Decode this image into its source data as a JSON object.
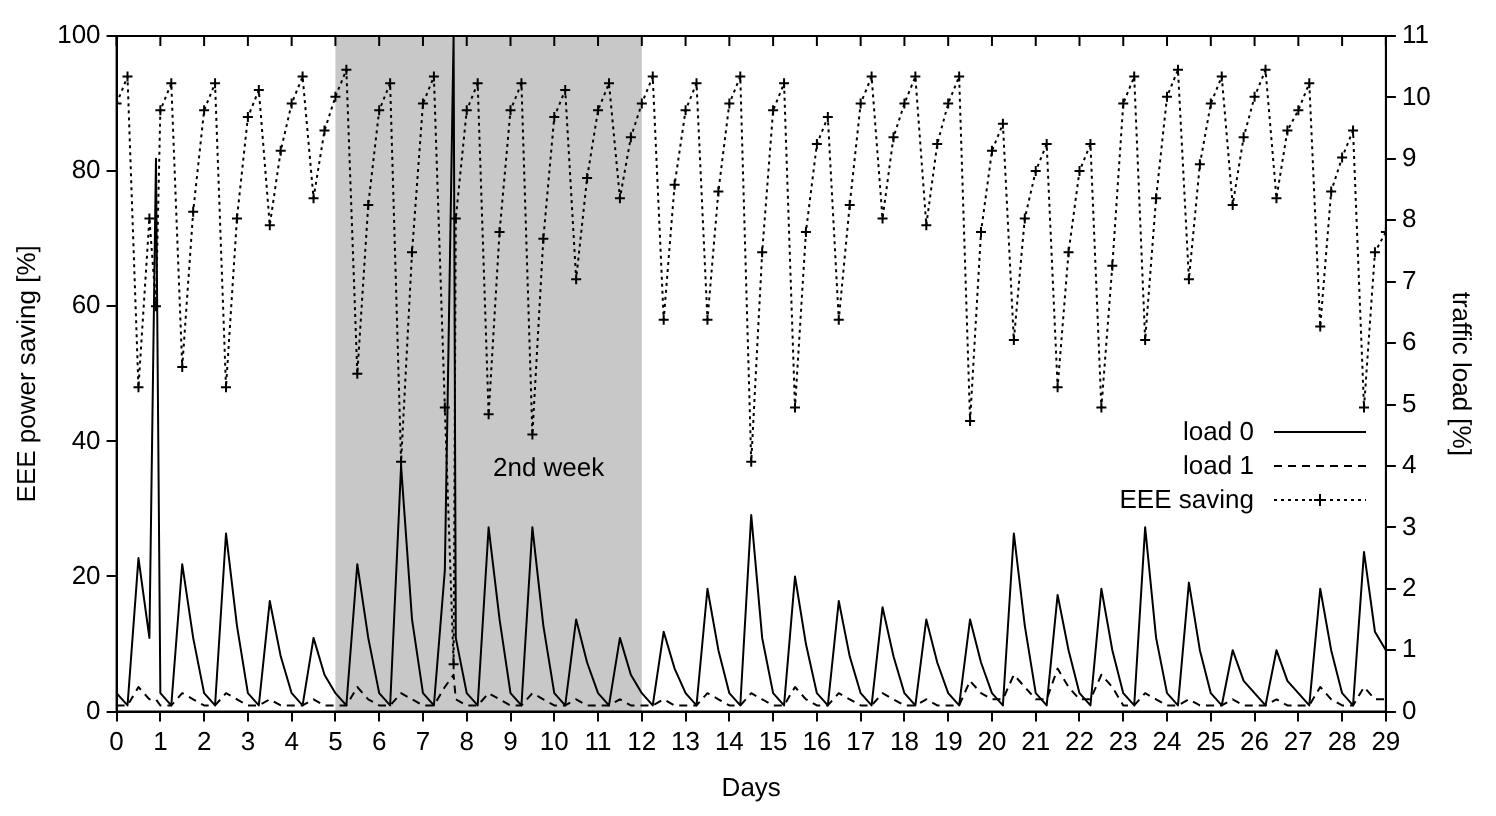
{
  "chart_data": {
    "type": "line",
    "xlabel": "Days",
    "ylabel": "EEE power saving [%]",
    "y2label": "traffic load [%]",
    "x": [
      0,
      0.25,
      0.5,
      0.75,
      0.9,
      1,
      1.25,
      1.5,
      1.75,
      2,
      2.25,
      2.5,
      2.75,
      3,
      3.25,
      3.5,
      3.75,
      4,
      4.25,
      4.5,
      4.75,
      5,
      5.25,
      5.5,
      5.75,
      6,
      6.25,
      6.5,
      6.75,
      7,
      7.25,
      7.5,
      7.7,
      7.75,
      8,
      8.25,
      8.5,
      8.75,
      9,
      9.25,
      9.5,
      9.75,
      10,
      10.25,
      10.5,
      10.75,
      11,
      11.25,
      11.5,
      11.75,
      12,
      12.25,
      12.5,
      12.75,
      13,
      13.25,
      13.5,
      13.75,
      14,
      14.25,
      14.5,
      14.75,
      15,
      15.25,
      15.5,
      15.75,
      16,
      16.25,
      16.5,
      16.75,
      17,
      17.25,
      17.5,
      17.75,
      18,
      18.25,
      18.5,
      18.75,
      19,
      19.25,
      19.5,
      19.75,
      20,
      20.25,
      20.5,
      20.75,
      21,
      21.25,
      21.5,
      21.75,
      22,
      22.25,
      22.5,
      22.75,
      23,
      23.25,
      23.5,
      23.75,
      24,
      24.25,
      24.5,
      24.75,
      25,
      25.25,
      25.5,
      25.75,
      26,
      26.25,
      26.5,
      26.75,
      27,
      27.25,
      27.5,
      27.75,
      28,
      28.25,
      28.5,
      28.75,
      29
    ],
    "series": [
      {
        "name": "load 0",
        "color": "#000000",
        "axis": "y2",
        "line_style": "solid",
        "marker": "none",
        "values": [
          0.3,
          0.1,
          2.5,
          1.2,
          9,
          0.3,
          0.1,
          2.4,
          1.2,
          0.3,
          0.1,
          2.9,
          1.4,
          0.3,
          0.1,
          1.8,
          0.9,
          0.3,
          0.1,
          1.2,
          0.6,
          0.3,
          0.1,
          2.4,
          1.2,
          0.3,
          0.1,
          4.0,
          1.5,
          0.3,
          0.1,
          2.3,
          11,
          1.2,
          0.3,
          0.1,
          3.0,
          1.5,
          0.3,
          0.1,
          3.0,
          1.4,
          0.3,
          0.1,
          1.5,
          0.8,
          0.3,
          0.1,
          1.2,
          0.6,
          0.3,
          0.1,
          1.3,
          0.7,
          0.3,
          0.1,
          2.0,
          1.0,
          0.3,
          0.1,
          3.2,
          1.2,
          0.3,
          0.1,
          2.2,
          1.1,
          0.3,
          0.1,
          1.8,
          0.9,
          0.3,
          0.1,
          1.7,
          0.9,
          0.3,
          0.1,
          1.5,
          0.8,
          0.3,
          0.1,
          1.5,
          0.8,
          0.3,
          0.1,
          2.9,
          1.4,
          0.3,
          0.1,
          1.9,
          1.0,
          0.3,
          0.1,
          2.0,
          1.0,
          0.3,
          0.1,
          3.0,
          1.2,
          0.3,
          0.1,
          2.1,
          1.0,
          0.3,
          0.1,
          1.0,
          0.5,
          0.3,
          0.1,
          1.0,
          0.5,
          0.3,
          0.1,
          2.0,
          1.0,
          0.3,
          0.1,
          2.6,
          1.3,
          1.0
        ]
      },
      {
        "name": "load 1",
        "color": "#000000",
        "axis": "y2",
        "line_style": "dashed",
        "marker": "none",
        "values": [
          0.1,
          0.1,
          0.4,
          0.2,
          0.2,
          0.1,
          0.1,
          0.3,
          0.2,
          0.1,
          0.1,
          0.3,
          0.2,
          0.1,
          0.1,
          0.2,
          0.1,
          0.1,
          0.1,
          0.2,
          0.1,
          0.1,
          0.1,
          0.4,
          0.2,
          0.1,
          0.1,
          0.3,
          0.2,
          0.1,
          0.1,
          0.4,
          0.6,
          0.2,
          0.1,
          0.1,
          0.3,
          0.2,
          0.1,
          0.1,
          0.3,
          0.2,
          0.1,
          0.1,
          0.2,
          0.1,
          0.1,
          0.1,
          0.2,
          0.1,
          0.1,
          0.1,
          0.2,
          0.1,
          0.1,
          0.1,
          0.3,
          0.2,
          0.1,
          0.1,
          0.3,
          0.2,
          0.1,
          0.1,
          0.4,
          0.2,
          0.1,
          0.1,
          0.3,
          0.2,
          0.1,
          0.1,
          0.3,
          0.2,
          0.1,
          0.1,
          0.2,
          0.1,
          0.1,
          0.1,
          0.5,
          0.3,
          0.2,
          0.2,
          0.6,
          0.4,
          0.2,
          0.2,
          0.7,
          0.4,
          0.2,
          0.2,
          0.6,
          0.4,
          0.1,
          0.1,
          0.3,
          0.2,
          0.1,
          0.1,
          0.2,
          0.1,
          0.1,
          0.1,
          0.2,
          0.1,
          0.1,
          0.1,
          0.2,
          0.1,
          0.1,
          0.1,
          0.4,
          0.2,
          0.1,
          0.1,
          0.4,
          0.2,
          0.2
        ]
      },
      {
        "name": "EEE saving",
        "color": "#000000",
        "line_style": "dotted",
        "marker": "cross",
        "values": [
          90,
          94,
          48,
          73,
          60,
          89,
          93,
          51,
          74,
          89,
          93,
          48,
          73,
          88,
          92,
          72,
          83,
          90,
          94,
          76,
          86,
          91,
          95,
          50,
          75,
          89,
          93,
          37,
          68,
          90,
          94,
          45,
          7,
          73,
          89,
          93,
          44,
          71,
          89,
          93,
          41,
          70,
          88,
          92,
          64,
          79,
          89,
          93,
          76,
          85,
          90,
          94,
          58,
          78,
          89,
          93,
          58,
          77,
          90,
          94,
          37,
          68,
          89,
          93,
          45,
          71,
          84,
          88,
          58,
          75,
          90,
          94,
          73,
          85,
          90,
          94,
          72,
          84,
          90,
          94,
          43,
          71,
          83,
          87,
          55,
          73,
          80,
          84,
          48,
          68,
          80,
          84,
          45,
          66,
          90,
          94,
          55,
          76,
          91,
          95,
          64,
          81,
          90,
          94,
          75,
          85,
          91,
          95,
          76,
          86,
          89,
          93,
          57,
          77,
          82,
          86,
          45,
          68,
          71
        ]
      }
    ],
    "xlim": [
      0,
      29
    ],
    "xticks": [
      0,
      1,
      2,
      3,
      4,
      5,
      6,
      7,
      8,
      9,
      10,
      11,
      12,
      13,
      14,
      15,
      16,
      17,
      18,
      19,
      20,
      21,
      22,
      23,
      24,
      25,
      26,
      27,
      28,
      29
    ],
    "ylim": [
      0,
      100
    ],
    "yticks": [
      0,
      20,
      40,
      60,
      80,
      100
    ],
    "y2lim": [
      0,
      11
    ],
    "y2ticks": [
      0,
      1,
      2,
      3,
      4,
      5,
      6,
      7,
      8,
      9,
      10,
      11
    ],
    "bands": [
      {
        "axis": "x",
        "from": 5,
        "to": 12,
        "label": "2nd week",
        "color": "#c8c8c8"
      }
    ],
    "legend": "right"
  }
}
